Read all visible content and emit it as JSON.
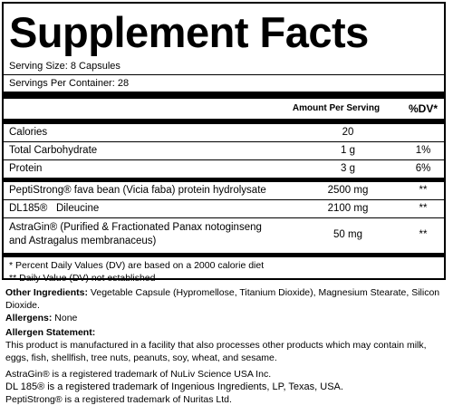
{
  "title": "Supplement Facts",
  "serving_size": "Serving Size: 8 Capsules",
  "servings_per_container": "Servings Per Container: 28",
  "table": {
    "header_amount": "Amount Per Serving",
    "header_dv": "%DV*",
    "rows": [
      {
        "name": "Calories",
        "amount": "20",
        "dv": ""
      },
      {
        "name": "Total Carbohydrate",
        "amount": "1 g",
        "dv": "1%"
      },
      {
        "name": "Protein",
        "amount": "3 g",
        "dv": "6%"
      }
    ],
    "blend": [
      {
        "name": "PeptiStrong® fava bean (Vicia faba) protein hydrolysate",
        "amount": "2500 mg",
        "dv": "**"
      },
      {
        "name": "DL185®   Dileucine",
        "amount": "2100 mg",
        "dv": "**"
      },
      {
        "name_line1": "AstraGin® (Purified & Fractionated Panax notoginseng",
        "name_line2": "and Astragalus membranaceus)",
        "amount": "50 mg",
        "dv": "**"
      }
    ]
  },
  "footnote1": "* Percent Daily Values (DV) are based on a 2000 calorie diet",
  "footnote2": "** Daily Value (DV) not established",
  "other_label": "Other Ingredients:",
  "other_text": " Vegetable Capsule (Hypromellose, Titanium Dioxide), Magnesium Stearate, Silicon Dioxide.",
  "allergens_label": "Allergens:",
  "allergens_text": " None",
  "allergen_statement_label": "Allergen Statement:",
  "allergen_statement_text": "This product is manufactured in a facility that also processes other products which may contain milk, eggs, fish, shellfish, tree nuts, peanuts, soy, wheat, and sesame.",
  "trademarks": [
    "AstraGin® is a registered trademark of NuLiv Science USA Inc.",
    "DL 185® is a registered trademark of Ingenious Ingredients, LP, Texas, USA.",
    "PeptiStrong® is a registered trademark of Nuritas Ltd."
  ]
}
